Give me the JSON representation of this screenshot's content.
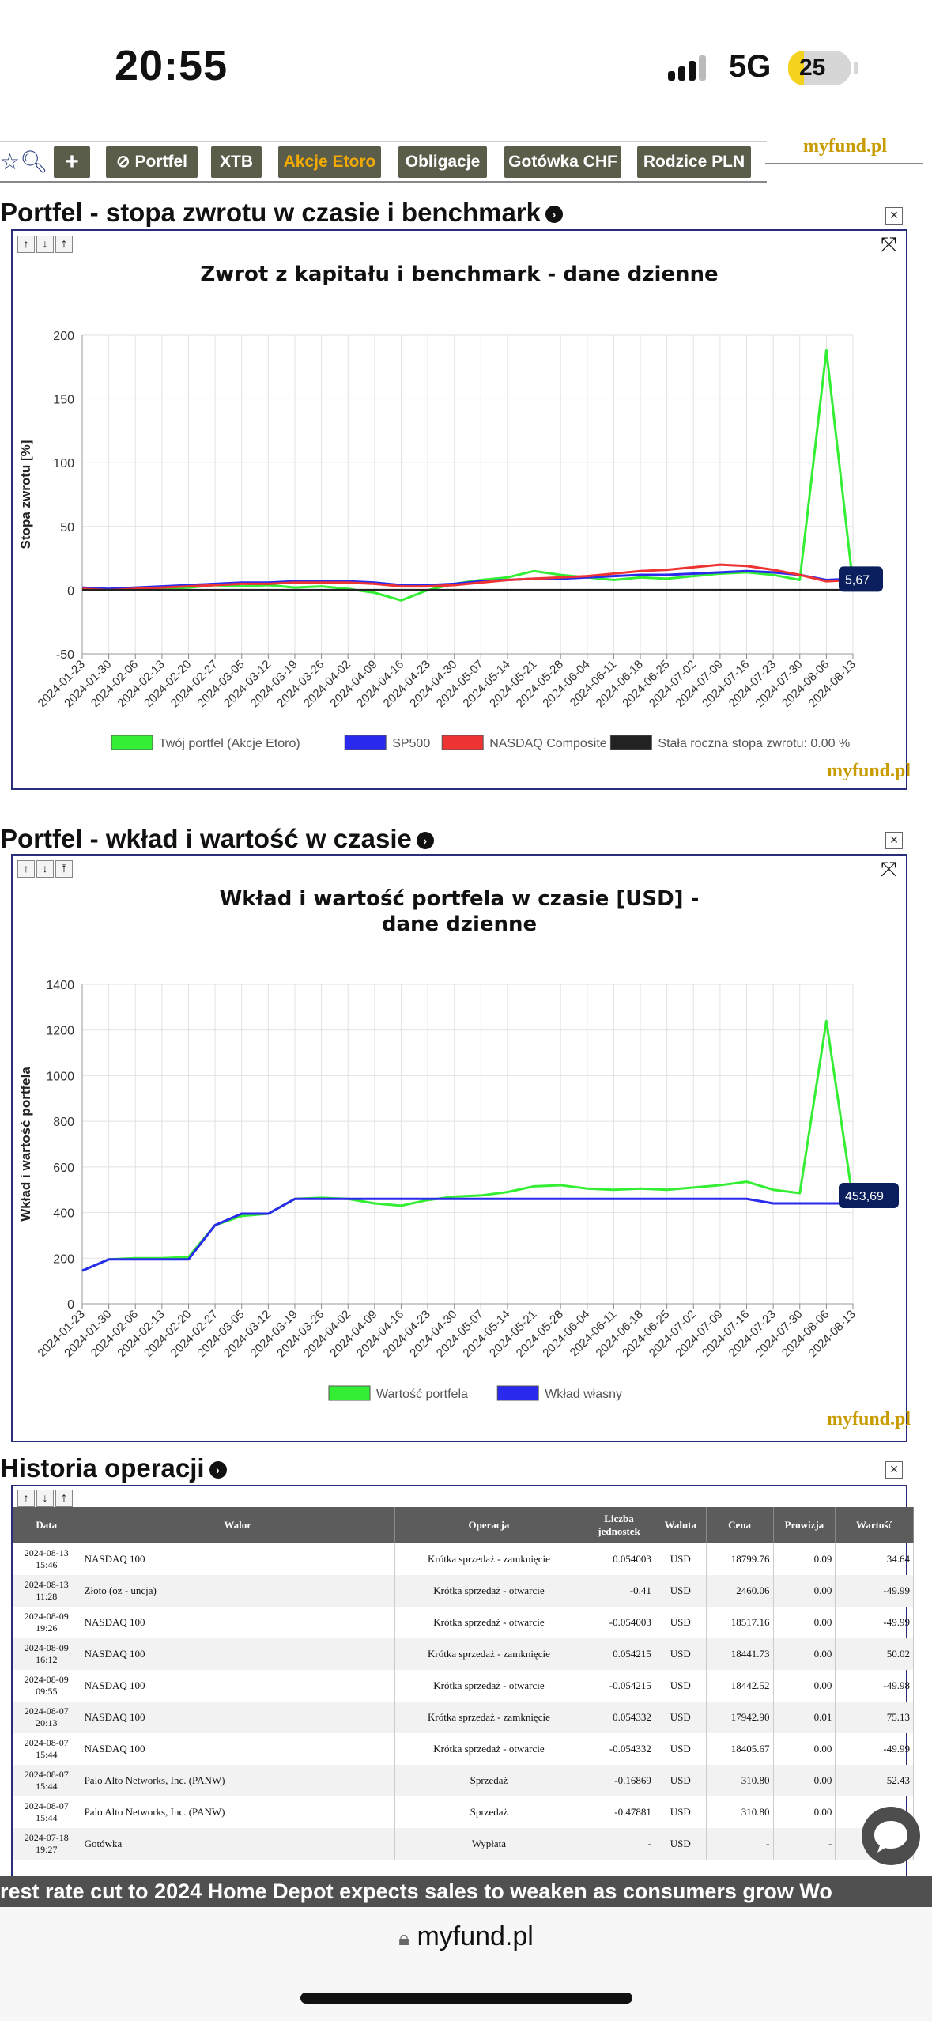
{
  "status": {
    "time": "20:55",
    "network": "5G",
    "battery": "25",
    "battery_level": 0.25
  },
  "toolbar": {
    "buttons": [
      "+",
      "Portfel",
      "XTB",
      "Akcje Etoro",
      "Obligacje",
      "Gotówka CHF",
      "Rodzice PLN"
    ],
    "active": "Akcje Etoro",
    "logo": "myfund.pl"
  },
  "section1": {
    "title": "Portfel - stopa zwrotu w czasie i benchmark",
    "chart_title": "Zwrot z kapitału i benchmark - dane dzienne",
    "watermark": "myfund.pl"
  },
  "section2": {
    "title": "Portfel - wkład i wartość w czasie",
    "chart_title_1": "Wkład i wartość portfela w czasie [USD] -",
    "chart_title_2": "dane dzienne",
    "watermark": "myfund.pl"
  },
  "section3": {
    "title": "Historia operacji"
  },
  "chart_data": [
    {
      "type": "line",
      "title": "Zwrot z kapitału i benchmark - dane dzienne",
      "ylabel": "Stopa zwrotu [%]",
      "xlabel": "",
      "ylim": [
        -50,
        200
      ],
      "yticks": [
        -50,
        0,
        50,
        100,
        150,
        200
      ],
      "xticks": [
        "2024-01-23",
        "2024-01-30",
        "2024-02-06",
        "2024-02-13",
        "2024-02-20",
        "2024-02-27",
        "2024-03-05",
        "2024-03-12",
        "2024-03-19",
        "2024-03-26",
        "2024-04-02",
        "2024-04-09",
        "2024-04-16",
        "2024-04-23",
        "2024-04-30",
        "2024-05-07",
        "2024-05-14",
        "2024-05-21",
        "2024-05-28",
        "2024-06-04",
        "2024-06-11",
        "2024-06-18",
        "2024-06-25",
        "2024-07-02",
        "2024-07-09",
        "2024-07-16",
        "2024-07-23",
        "2024-07-30",
        "2024-08-06",
        "2024-08-13"
      ],
      "grid": true,
      "legend": "bottom",
      "tooltip": "5,67",
      "series": [
        {
          "name": "Twój portfel (Akcje Etoro)",
          "color": "#33ee33",
          "values": [
            1,
            0,
            0,
            1,
            2,
            4,
            3,
            4,
            2,
            3,
            1,
            -2,
            -8,
            0,
            5,
            8,
            10,
            15,
            12,
            10,
            8,
            10,
            9,
            11,
            13,
            14,
            12,
            8,
            188,
            5
          ]
        },
        {
          "name": "SP500",
          "color": "#2a2aee",
          "values": [
            2,
            1,
            2,
            3,
            4,
            5,
            6,
            6,
            7,
            7,
            7,
            6,
            4,
            4,
            5,
            7,
            8,
            9,
            9,
            10,
            11,
            12,
            12,
            13,
            14,
            15,
            14,
            12,
            8,
            9
          ]
        },
        {
          "name": "NASDAQ Composite",
          "color": "#ee3333",
          "values": [
            1,
            0,
            1,
            2,
            3,
            4,
            5,
            5,
            6,
            6,
            6,
            5,
            3,
            3,
            4,
            6,
            8,
            9,
            10,
            11,
            13,
            15,
            16,
            18,
            20,
            19,
            16,
            12,
            7,
            8
          ]
        },
        {
          "name": "Stała roczna stopa zwrotu: 0.00 %",
          "color": "#222222",
          "values": [
            0,
            0,
            0,
            0,
            0,
            0,
            0,
            0,
            0,
            0,
            0,
            0,
            0,
            0,
            0,
            0,
            0,
            0,
            0,
            0,
            0,
            0,
            0,
            0,
            0,
            0,
            0,
            0,
            0,
            0
          ]
        }
      ]
    },
    {
      "type": "line",
      "title": "Wkład i wartość portfela w czasie [USD] - dane dzienne",
      "ylabel": "Wkład i wartość portfela",
      "xlabel": "",
      "ylim": [
        0,
        1400
      ],
      "yticks": [
        0,
        200,
        400,
        600,
        800,
        1000,
        1200,
        1400
      ],
      "xticks": [
        "2024-01-23",
        "2024-01-30",
        "2024-02-06",
        "2024-02-13",
        "2024-02-20",
        "2024-02-27",
        "2024-03-05",
        "2024-03-12",
        "2024-03-19",
        "2024-03-26",
        "2024-04-02",
        "2024-04-09",
        "2024-04-16",
        "2024-04-23",
        "2024-04-30",
        "2024-05-07",
        "2024-05-14",
        "2024-05-21",
        "2024-05-28",
        "2024-06-04",
        "2024-06-11",
        "2024-06-18",
        "2024-06-25",
        "2024-07-02",
        "2024-07-09",
        "2024-07-16",
        "2024-07-23",
        "2024-07-30",
        "2024-08-06",
        "2024-08-13"
      ],
      "grid": true,
      "legend": "bottom",
      "tooltip": "453,69",
      "series": [
        {
          "name": "Wartość portfela",
          "color": "#33ee33",
          "values": [
            145,
            195,
            200,
            200,
            205,
            345,
            385,
            395,
            460,
            465,
            460,
            440,
            430,
            455,
            470,
            475,
            490,
            515,
            520,
            505,
            500,
            505,
            500,
            510,
            520,
            535,
            500,
            485,
            1240,
            454
          ]
        },
        {
          "name": "Wkład własny",
          "color": "#2a2aee",
          "values": [
            145,
            195,
            195,
            195,
            195,
            345,
            395,
            395,
            460,
            460,
            460,
            460,
            460,
            460,
            460,
            460,
            460,
            460,
            460,
            460,
            460,
            460,
            460,
            460,
            460,
            460,
            440,
            440,
            440,
            440
          ]
        }
      ]
    }
  ],
  "ops": {
    "headers": [
      "Data",
      "Walor",
      "Operacja",
      "Liczba jednostek",
      "Waluta",
      "Cena",
      "Prowizja",
      "Wartość"
    ],
    "rows": [
      [
        "2024-08-13 15:46",
        "NASDAQ 100",
        "Krótka sprzedaż - zamknięcie",
        "0.054003",
        "USD",
        "18799.76",
        "0.09",
        "34.64"
      ],
      [
        "2024-08-13 11:28",
        "Złoto (oz - uncja)",
        "Krótka sprzedaż - otwarcie",
        "-0.41",
        "USD",
        "2460.06",
        "0.00",
        "-49.99"
      ],
      [
        "2024-08-09 19:26",
        "NASDAQ 100",
        "Krótka sprzedaż - otwarcie",
        "-0.054003",
        "USD",
        "18517.16",
        "0.00",
        "-49.99"
      ],
      [
        "2024-08-09 16:12",
        "NASDAQ 100",
        "Krótka sprzedaż - zamknięcie",
        "0.054215",
        "USD",
        "18441.73",
        "0.00",
        "50.02"
      ],
      [
        "2024-08-09 09:55",
        "NASDAQ 100",
        "Krótka sprzedaż - otwarcie",
        "-0.054215",
        "USD",
        "18442.52",
        "0.00",
        "-49.98"
      ],
      [
        "2024-08-07 20:13",
        "NASDAQ 100",
        "Krótka sprzedaż - zamknięcie",
        "0.054332",
        "USD",
        "17942.90",
        "0.01",
        "75.13"
      ],
      [
        "2024-08-07 15:44",
        "NASDAQ 100",
        "Krótka sprzedaż - otwarcie",
        "-0.054332",
        "USD",
        "18405.67",
        "0.00",
        "-49.99"
      ],
      [
        "2024-08-07 15:44",
        "Palo Alto Networks, Inc. (PANW)",
        "Sprzedaż",
        "-0.16869",
        "USD",
        "310.80",
        "0.00",
        "52.43"
      ],
      [
        "2024-08-07 15:44",
        "Palo Alto Networks, Inc. (PANW)",
        "Sprzedaż",
        "-0.47881",
        "USD",
        "310.80",
        "0.00",
        ""
      ],
      [
        "2024-07-18 19:27",
        "Gotówka",
        "Wypłata",
        "-",
        "USD",
        "-",
        "-",
        ""
      ]
    ]
  },
  "ticker": "rest rate cut to 2024 Home Depot expects sales to weaken as consumers grow Wo",
  "browser": {
    "url": "myfund.pl"
  }
}
